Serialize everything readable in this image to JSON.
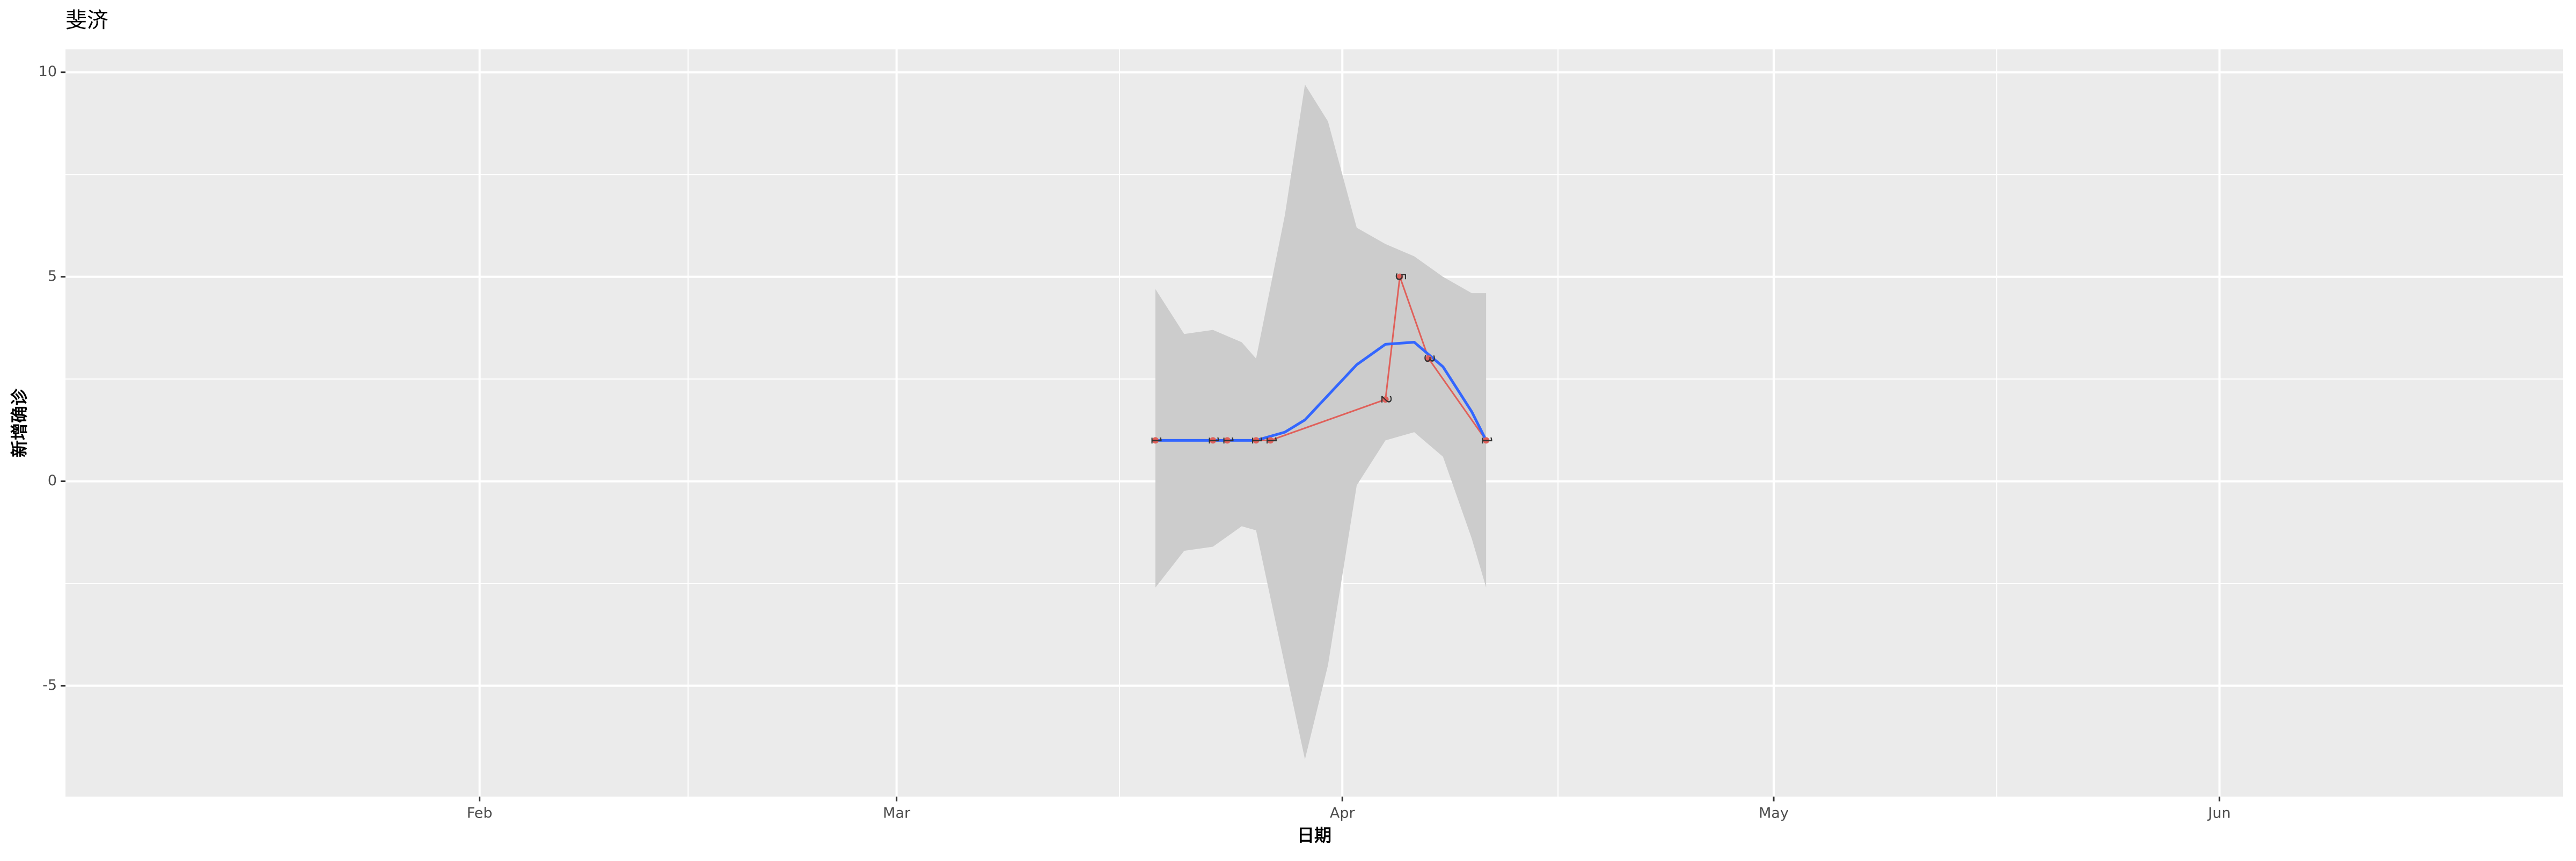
{
  "chart_data": {
    "type": "line",
    "title": "斐济",
    "x_label": "日期",
    "y_label": "新增确诊",
    "x": [
      79,
      83,
      84,
      86,
      87,
      95,
      96,
      98,
      102
    ],
    "values": [
      1,
      1,
      1,
      1,
      1,
      2,
      5,
      3,
      1
    ],
    "color": "#e0605a",
    "smooth": {
      "x": [
        79,
        81,
        83,
        85,
        86,
        88,
        89.4,
        91,
        93,
        95,
        97,
        99,
        101,
        102
      ],
      "values": [
        1.0,
        1.0,
        1.0,
        1.0,
        1.0,
        1.2,
        1.5,
        2.1,
        2.85,
        3.35,
        3.4,
        2.8,
        1.7,
        1.0
      ],
      "upper": [
        4.7,
        3.6,
        3.7,
        3.4,
        3.0,
        6.5,
        9.7,
        8.8,
        6.2,
        5.8,
        5.5,
        5.0,
        4.6,
        4.6
      ],
      "lower": [
        -2.6,
        -1.7,
        -1.6,
        -1.1,
        -1.2,
        -4.5,
        -6.8,
        -4.5,
        -0.1,
        1.0,
        1.2,
        0.6,
        -1.4,
        -2.6
      ],
      "color": "#3366ff",
      "band_color": "#cccccc"
    },
    "xlim": [
      3.2,
      176.9
    ],
    "xticks": [
      {
        "value": 32,
        "label": "Feb"
      },
      {
        "value": 61,
        "label": "Mar"
      },
      {
        "value": 92,
        "label": "Apr"
      },
      {
        "value": 122,
        "label": "May"
      },
      {
        "value": 153,
        "label": "Jun"
      }
    ],
    "ylim": [
      -7.71,
      10.56
    ],
    "yticks": [
      -5,
      0,
      5,
      10
    ],
    "grid": true
  }
}
